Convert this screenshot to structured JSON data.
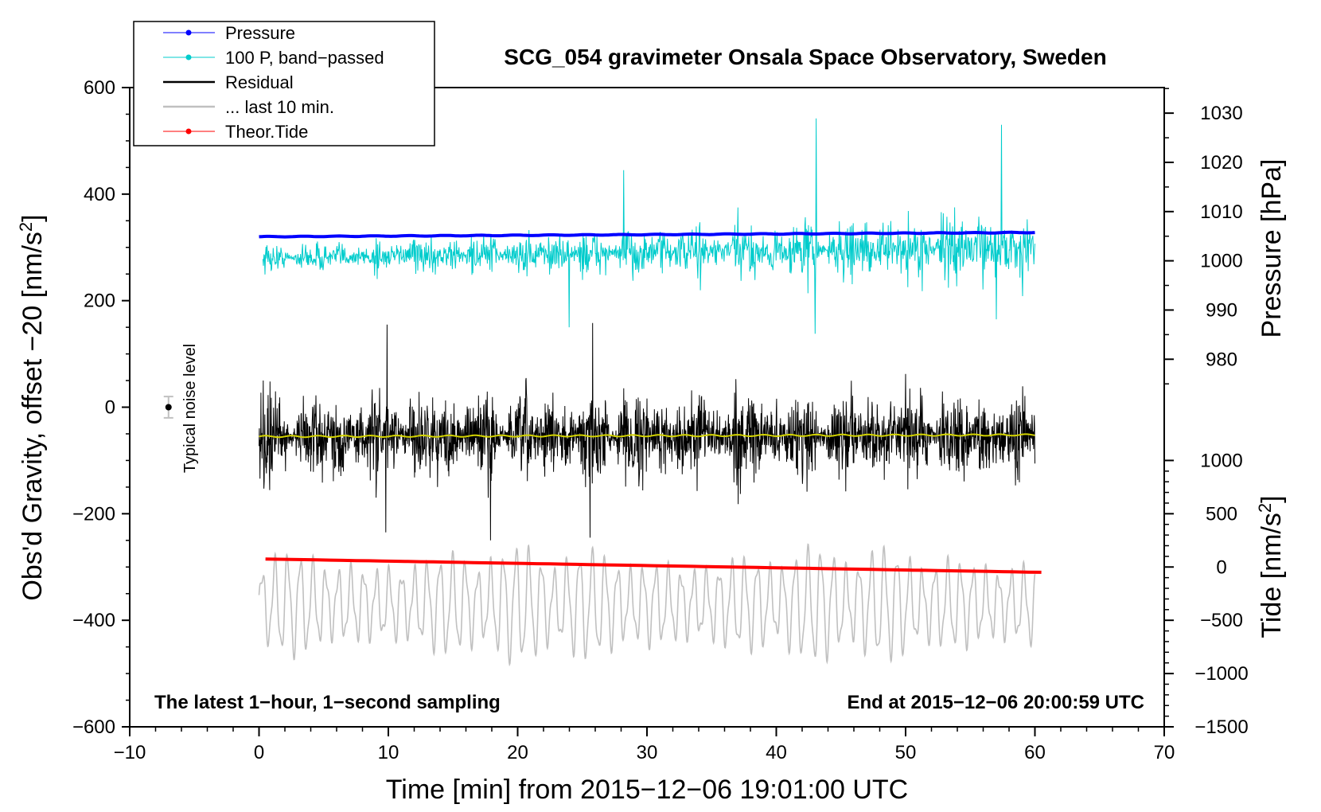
{
  "chart_data": {
    "type": "line",
    "title": "SCG_054 gravimeter Onsala Space Observatory, Sweden",
    "xlabel": "Time [min] from 2015−12−06 19:01:00 UTC",
    "ylabel_left_main": "Obs'd Gravity, offset −20 [nm/s",
    "ylabel_left_sup": "2",
    "ylabel_left_end": "]",
    "ylabel_right_top": "Pressure [hPa]",
    "ylabel_right_bottom_main": "Tide [nm/s",
    "ylabel_right_bottom_sup": "2",
    "ylabel_right_bottom_end": "]",
    "xlim": [
      -10,
      70
    ],
    "ylim_left": [
      -600,
      600
    ],
    "x_ticks": [
      -10,
      0,
      10,
      20,
      30,
      40,
      50,
      60,
      70
    ],
    "x_tick_labels": [
      "−10",
      "0",
      "10",
      "20",
      "30",
      "40",
      "50",
      "60",
      "70"
    ],
    "y_left_ticks": [
      -600,
      -400,
      -200,
      0,
      200,
      400,
      600
    ],
    "y_left_tick_labels": [
      "−600",
      "−400",
      "−200",
      "0",
      "200",
      "400",
      "600"
    ],
    "pressure_axis": {
      "ticks": [
        980,
        990,
        1000,
        1010,
        1020,
        1030
      ],
      "tick_labels": [
        "980",
        "990",
        "1000",
        "1010",
        "1020",
        "1030"
      ],
      "map": {
        "v1": 980,
        "g1": 90,
        "v2": 1030,
        "g2": 552
      }
    },
    "tide_axis": {
      "ticks": [
        -1500,
        -1000,
        -500,
        0,
        500,
        1000
      ],
      "tick_labels": [
        "−1500",
        "−1000",
        "−500",
        "0",
        "500",
        "1000"
      ],
      "map": {
        "v1": -1500,
        "g1": -600,
        "v2": 1000,
        "g2": -100
      }
    },
    "legend": [
      {
        "label": "Pressure",
        "color": "#0000ff",
        "marker": true
      },
      {
        "label": "100 P, band−passed",
        "color": "#00cccc",
        "marker": true
      },
      {
        "label": "Residual",
        "color": "#000000",
        "marker": false
      },
      {
        "label": "... last 10 min.",
        "color": "#c0c0c0",
        "marker": false
      },
      {
        "label": "Theor.Tide",
        "color": "#ff0000",
        "marker": true
      }
    ],
    "series": [
      {
        "name": "Pressure",
        "axis": "left",
        "color": "#0000ff",
        "x_range": [
          0,
          60
        ],
        "y_start": 320,
        "y_end": 328
      },
      {
        "name": "100 P, band−passed",
        "axis": "left",
        "color": "#00cccc",
        "x_range": [
          0,
          60
        ],
        "center": 280,
        "typical_min": 180,
        "typical_max": 430,
        "peak_max": 542,
        "peak_min": 138
      },
      {
        "name": "Residual",
        "axis": "left",
        "color": "#000000",
        "x_range": [
          0,
          60
        ],
        "center": -55,
        "typical_min": -190,
        "typical_max": 110,
        "peak_max": 158,
        "peak_min": -250
      },
      {
        "name": "Residual smoothed",
        "axis": "left",
        "color": "#d4d400",
        "x_range": [
          0,
          60
        ],
        "y_start": -55,
        "y_end": -52
      },
      {
        "name": "... last 10 min.",
        "axis": "left",
        "color": "#c0c0c0",
        "x_range": [
          0,
          60
        ],
        "center": -370,
        "typical_min": -510,
        "typical_max": -225
      },
      {
        "name": "Theor.Tide",
        "axis": "left",
        "color": "#ff0000",
        "x_range": [
          0.5,
          60.5
        ],
        "y_start": -285,
        "y_end": -310
      }
    ],
    "noise_marker": {
      "label": "Typical noise level",
      "x": -7,
      "y": 0,
      "err": 20
    },
    "note_left": "The latest 1−hour, 1−second sampling",
    "note_right": "End at 2015−12−06 20:00:59 UTC"
  }
}
